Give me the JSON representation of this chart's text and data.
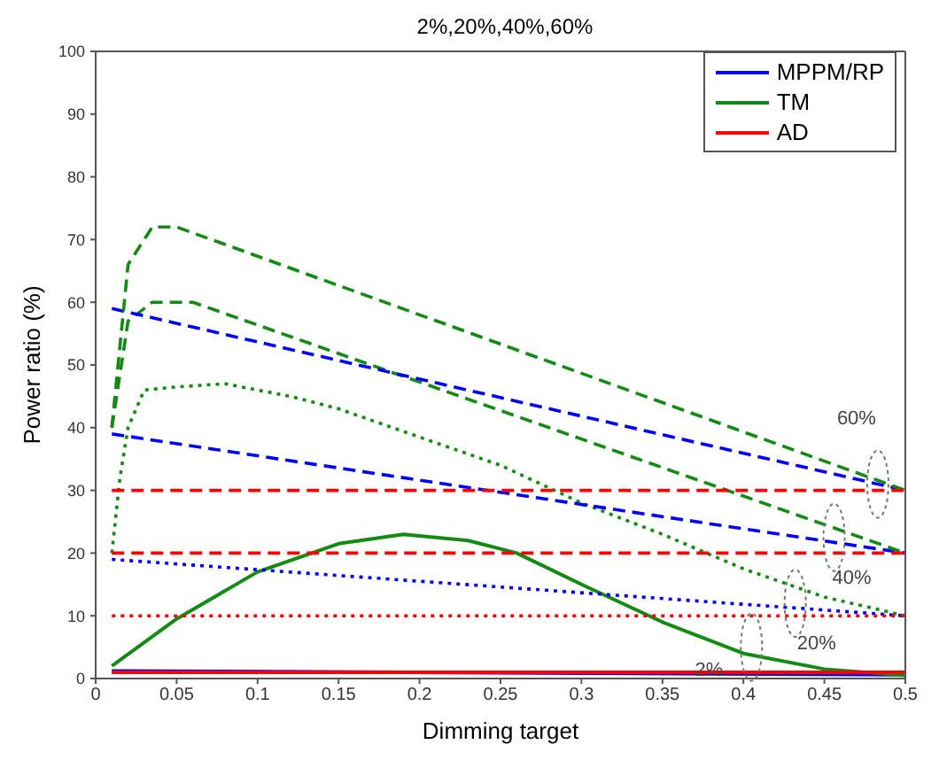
{
  "chart_data": {
    "type": "line",
    "title": "2%,20%,40%,60%",
    "xlabel": "Dimming target",
    "ylabel": "Power ratio (%)",
    "xlim": [
      0,
      0.5
    ],
    "xticks": [
      0,
      0.05,
      0.1,
      0.15,
      0.2,
      0.25,
      0.3,
      0.35,
      0.4,
      0.45,
      0.5
    ],
    "ylim": [
      0,
      100
    ],
    "yticks": [
      0,
      10,
      20,
      30,
      40,
      50,
      60,
      70,
      80,
      90,
      100
    ],
    "legend": "top right",
    "marker": "none",
    "series": [
      {
        "name": "MPPM/RP",
        "color": "#0000ff",
        "line_style": "solid",
        "x": [
          0.01,
          0.5
        ],
        "values": [
          1.2,
          0.6
        ]
      },
      {
        "name": "TM",
        "color": "#138a13",
        "line_style": "solid",
        "x": [
          0.01,
          0.05,
          0.1,
          0.15,
          0.19,
          0.23,
          0.26,
          0.3,
          0.35,
          0.4,
          0.45,
          0.5
        ],
        "values": [
          2,
          9.5,
          17,
          21.5,
          23,
          22,
          20,
          15,
          9,
          4,
          1.5,
          0.5
        ]
      },
      {
        "name": "AD",
        "color": "#ff0000",
        "line_style": "solid",
        "x": [
          0.01,
          0.5
        ],
        "values": [
          1,
          1
        ]
      },
      {
        "color": "#0000ff",
        "line_style": "dotted",
        "x": [
          0.01,
          0.5
        ],
        "values": [
          19,
          10
        ]
      },
      {
        "color": "#138a13",
        "line_style": "dotted",
        "x": [
          0.01,
          0.015,
          0.02,
          0.03,
          0.05,
          0.08,
          0.12,
          0.15,
          0.2,
          0.25,
          0.3,
          0.35,
          0.4,
          0.45,
          0.5
        ],
        "values": [
          20,
          32,
          40,
          46,
          46.5,
          47,
          45,
          43,
          38.5,
          34,
          28,
          23,
          17.5,
          13,
          10
        ]
      },
      {
        "color": "#ff0000",
        "line_style": "dotted",
        "x": [
          0.01,
          0.5
        ],
        "values": [
          10,
          10
        ]
      },
      {
        "color": "#0000ff",
        "line_style": "dashed",
        "x": [
          0.01,
          0.5
        ],
        "values": [
          39,
          20
        ]
      },
      {
        "color": "#138a13",
        "line_style": "dashed",
        "x": [
          0.01,
          0.02,
          0.035,
          0.06,
          0.5
        ],
        "values": [
          40,
          57,
          60,
          60,
          20
        ]
      },
      {
        "color": "#ff0000",
        "line_style": "dashed",
        "x": [
          0.01,
          0.5
        ],
        "values": [
          20,
          20
        ]
      },
      {
        "color": "#0000ff",
        "line_style": "dashed",
        "x": [
          0.01,
          0.5
        ],
        "values": [
          59,
          30
        ]
      },
      {
        "color": "#138a13",
        "line_style": "dashed",
        "x": [
          0.01,
          0.02,
          0.035,
          0.05,
          0.5
        ],
        "values": [
          40,
          66,
          72,
          72,
          30
        ]
      },
      {
        "color": "#ff0000",
        "line_style": "dashed",
        "x": [
          0.01,
          0.5
        ],
        "values": [
          30,
          30
        ]
      }
    ],
    "annotations": [
      {
        "text": "60%",
        "x": 0.483,
        "y": 31
      },
      {
        "text": "40%",
        "x": 0.456,
        "y": 22.5
      },
      {
        "text": "20%",
        "x": 0.432,
        "y": 12
      },
      {
        "text": "2%",
        "x": 0.405,
        "y": 5
      }
    ]
  }
}
